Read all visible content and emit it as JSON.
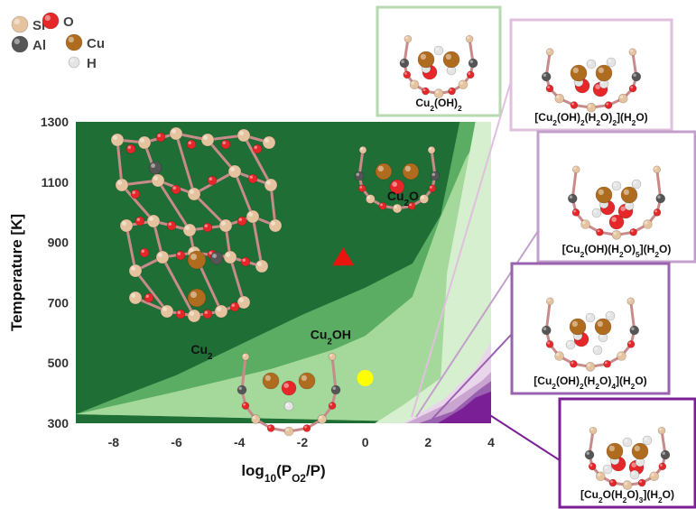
{
  "chart_data": {
    "type": "area",
    "title": "",
    "xlabel": "log10(PO2/P)",
    "ylabel": "Temperature [K]",
    "xlim": [
      -9.2,
      4
    ],
    "ylim": [
      300,
      1300
    ],
    "xticks": [
      -8,
      -6,
      -4,
      -2,
      0,
      2,
      4
    ],
    "yticks": [
      300,
      500,
      700,
      900,
      1100,
      1300
    ],
    "grid": false,
    "legend": "top-left",
    "regions": [
      {
        "name": "Cu2",
        "color": "#1e6e36"
      },
      {
        "name": "Cu2O",
        "color": "#5aad62"
      },
      {
        "name": "Cu2OH",
        "color": "#a5d89b"
      },
      {
        "name": "Cu2(OH)2",
        "color": "#d6efcf"
      },
      {
        "name": "[Cu2(OH)2(H2O)2](H2O)",
        "color": "#ead6ea"
      },
      {
        "name": "[Cu2(OH)(H2O)5](H2O)",
        "color": "#caa5cf"
      },
      {
        "name": "[Cu2(OH)2(H2O)4](H2O)",
        "color": "#9a61b0"
      },
      {
        "name": "[Cu2O(H2O)3](H2O)",
        "color": "#7a1f96"
      }
    ],
    "boundaries": [
      {
        "between": "Cu2 / Cu2O",
        "points": [
          [
            -9.2,
            330
          ],
          [
            -8,
            380
          ],
          [
            -6,
            460
          ],
          [
            -4,
            560
          ],
          [
            -2,
            660
          ],
          [
            0,
            750
          ],
          [
            1.5,
            830
          ],
          [
            2.4,
            990
          ],
          [
            3,
            1300
          ]
        ]
      },
      {
        "between": "Cu2O / Cu2OH",
        "points": [
          [
            -9.2,
            330
          ],
          [
            -6,
            405
          ],
          [
            -3,
            480
          ],
          [
            -1,
            545
          ],
          [
            0,
            590
          ],
          [
            1.5,
            720
          ],
          [
            2.4,
            985
          ],
          [
            3.2,
            1180
          ],
          [
            3.9,
            1300
          ]
        ]
      },
      {
        "between": "Cu2OH / Cu2(OH)2",
        "points": [
          [
            0.3,
            300
          ],
          [
            1.2,
            360
          ],
          [
            2.4,
            450
          ],
          [
            2.6,
            800
          ],
          [
            3.5,
            1300
          ]
        ]
      },
      {
        "between": "Cu2(OH)2 / [Cu2(OH)2(H2O)2](H2O)",
        "points": [
          [
            1.2,
            300
          ],
          [
            2.5,
            380
          ],
          [
            3.5,
            480
          ],
          [
            4,
            570
          ]
        ]
      },
      {
        "between": "[Cu2(OH)2(H2O)2](H2O) / [Cu2(OH)(H2O)5](H2O)",
        "points": [
          [
            1.3,
            300
          ],
          [
            2.7,
            370
          ],
          [
            3.7,
            440
          ],
          [
            4,
            470
          ]
        ]
      },
      {
        "between": "[Cu2(OH)(H2O)5](H2O) / [Cu2(OH)2(H2O)4](H2O)",
        "points": [
          [
            1.7,
            300
          ],
          [
            2.8,
            340
          ],
          [
            3.6,
            410
          ],
          [
            4,
            440
          ]
        ]
      },
      {
        "between": "[Cu2(OH)2(H2O)4](H2O) / [Cu2O(H2O)3](H2O)",
        "points": [
          [
            2.3,
            300
          ],
          [
            3.1,
            350
          ],
          [
            3.5,
            385
          ],
          [
            4,
            405
          ]
        ]
      }
    ],
    "markers": [
      {
        "shape": "triangle",
        "x": -0.7,
        "y": 850,
        "color": "#e8140e"
      },
      {
        "shape": "circle",
        "x": 0,
        "y": 450,
        "color": "#ffff00"
      }
    ],
    "region_labels": [
      {
        "text": "Cu2",
        "x": -5.2,
        "y": 530
      },
      {
        "text": "Cu2OH",
        "x": -1.1,
        "y": 580
      },
      {
        "text": "Cu2O",
        "x": 1.2,
        "y": 1040
      }
    ]
  },
  "legend": {
    "items": [
      {
        "label": "Si",
        "color": "#e5c39e"
      },
      {
        "label": "O",
        "color": "#e5272a"
      },
      {
        "label": "Al",
        "color": "#555555"
      },
      {
        "label": "Cu",
        "color": "#b06c1e"
      },
      {
        "label": "H",
        "color": "#e4e4e4"
      }
    ]
  },
  "insets": [
    {
      "name": "cu2oh2",
      "label": "Cu2(OH)2",
      "border": "#b6d9b0"
    },
    {
      "name": "cu2oh2h2o2",
      "label": "[Cu2(OH)2(H2O)2](H2O)",
      "border": "#e0c0de"
    },
    {
      "name": "cu2ohh2o5",
      "label": "[Cu2(OH)(H2O)5](H2O)",
      "border": "#c3a0cc"
    },
    {
      "name": "cu2oh2h2o4",
      "label": "[Cu2(OH)2(H2O)4](H2O)",
      "border": "#9a61b0"
    },
    {
      "name": "cu2oh2o3",
      "label": "[Cu2O(H2O)3](H2O)",
      "border": "#7a1f96"
    }
  ]
}
